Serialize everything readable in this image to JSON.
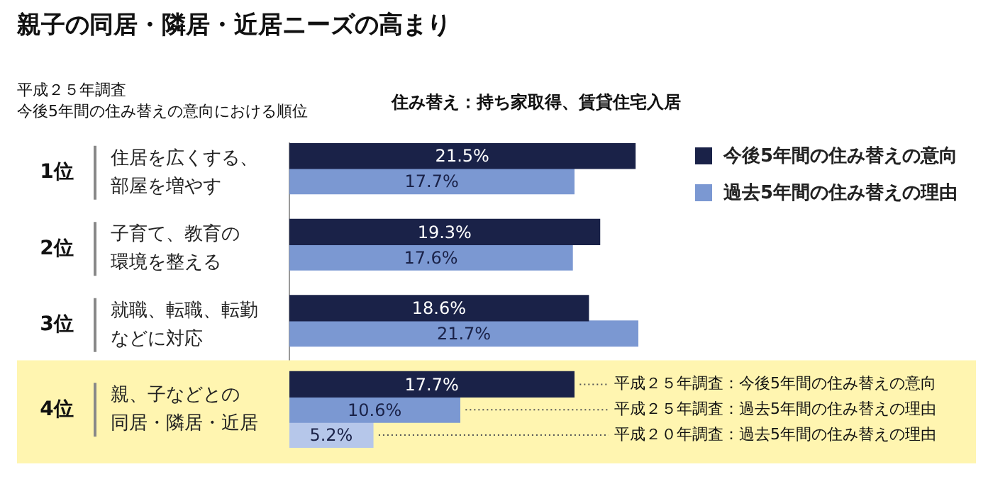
{
  "chart_data": {
    "type": "bar",
    "orientation": "horizontal",
    "title": "親子の同居・隣居・近居ニーズの高まり",
    "subtitle": "平成２５年調査",
    "categories": [
      "住居を広くする、部屋を増やす",
      "子育て、教育の環境を整える",
      "就職、転職、転勤などに対応",
      "親、子などとの同居・隣居・近居"
    ],
    "series": [
      {
        "name": "今後5年間の住み替えの意向",
        "color": "#1a2248",
        "values": [
          21.5,
          19.3,
          18.6,
          17.7
        ],
        "value_labels": [
          "21.5%",
          "19.3%",
          "18.6%",
          "17.7%"
        ]
      },
      {
        "name": "過去5年間の住み替えの理由",
        "color": "#7b98d2",
        "values": [
          17.7,
          17.6,
          21.7,
          10.6
        ],
        "value_labels": [
          "17.7%",
          "17.6%",
          "21.7%",
          "10.6%"
        ]
      },
      {
        "color": "#b6c7ea",
        "values": [
          null,
          null,
          null,
          5.2
        ],
        "value_labels": [
          null,
          null,
          null,
          "5.2%"
        ]
      }
    ],
    "tick_labels": "y",
    "grid": false,
    "legend": "top right",
    "bands": [
      {
        "axis": "y",
        "from": "親、子などとの同居・隣居・近居",
        "to": "親、子などとの同居・隣居・近居",
        "color": "#fff5b0"
      }
    ],
    "annotations": [
      "今後5年間の住み替えの意向における順位",
      "住み替え：持ち家取得、賃貸住宅入居",
      "1位",
      "2位",
      "3位",
      "4位",
      "平成２５年調査：今後5年間の住み替えの意向",
      "平成２５年調査：過去5年間の住み替えの理由",
      "平成２０年調査：過去5年間の住み替えの理由"
    ]
  }
}
